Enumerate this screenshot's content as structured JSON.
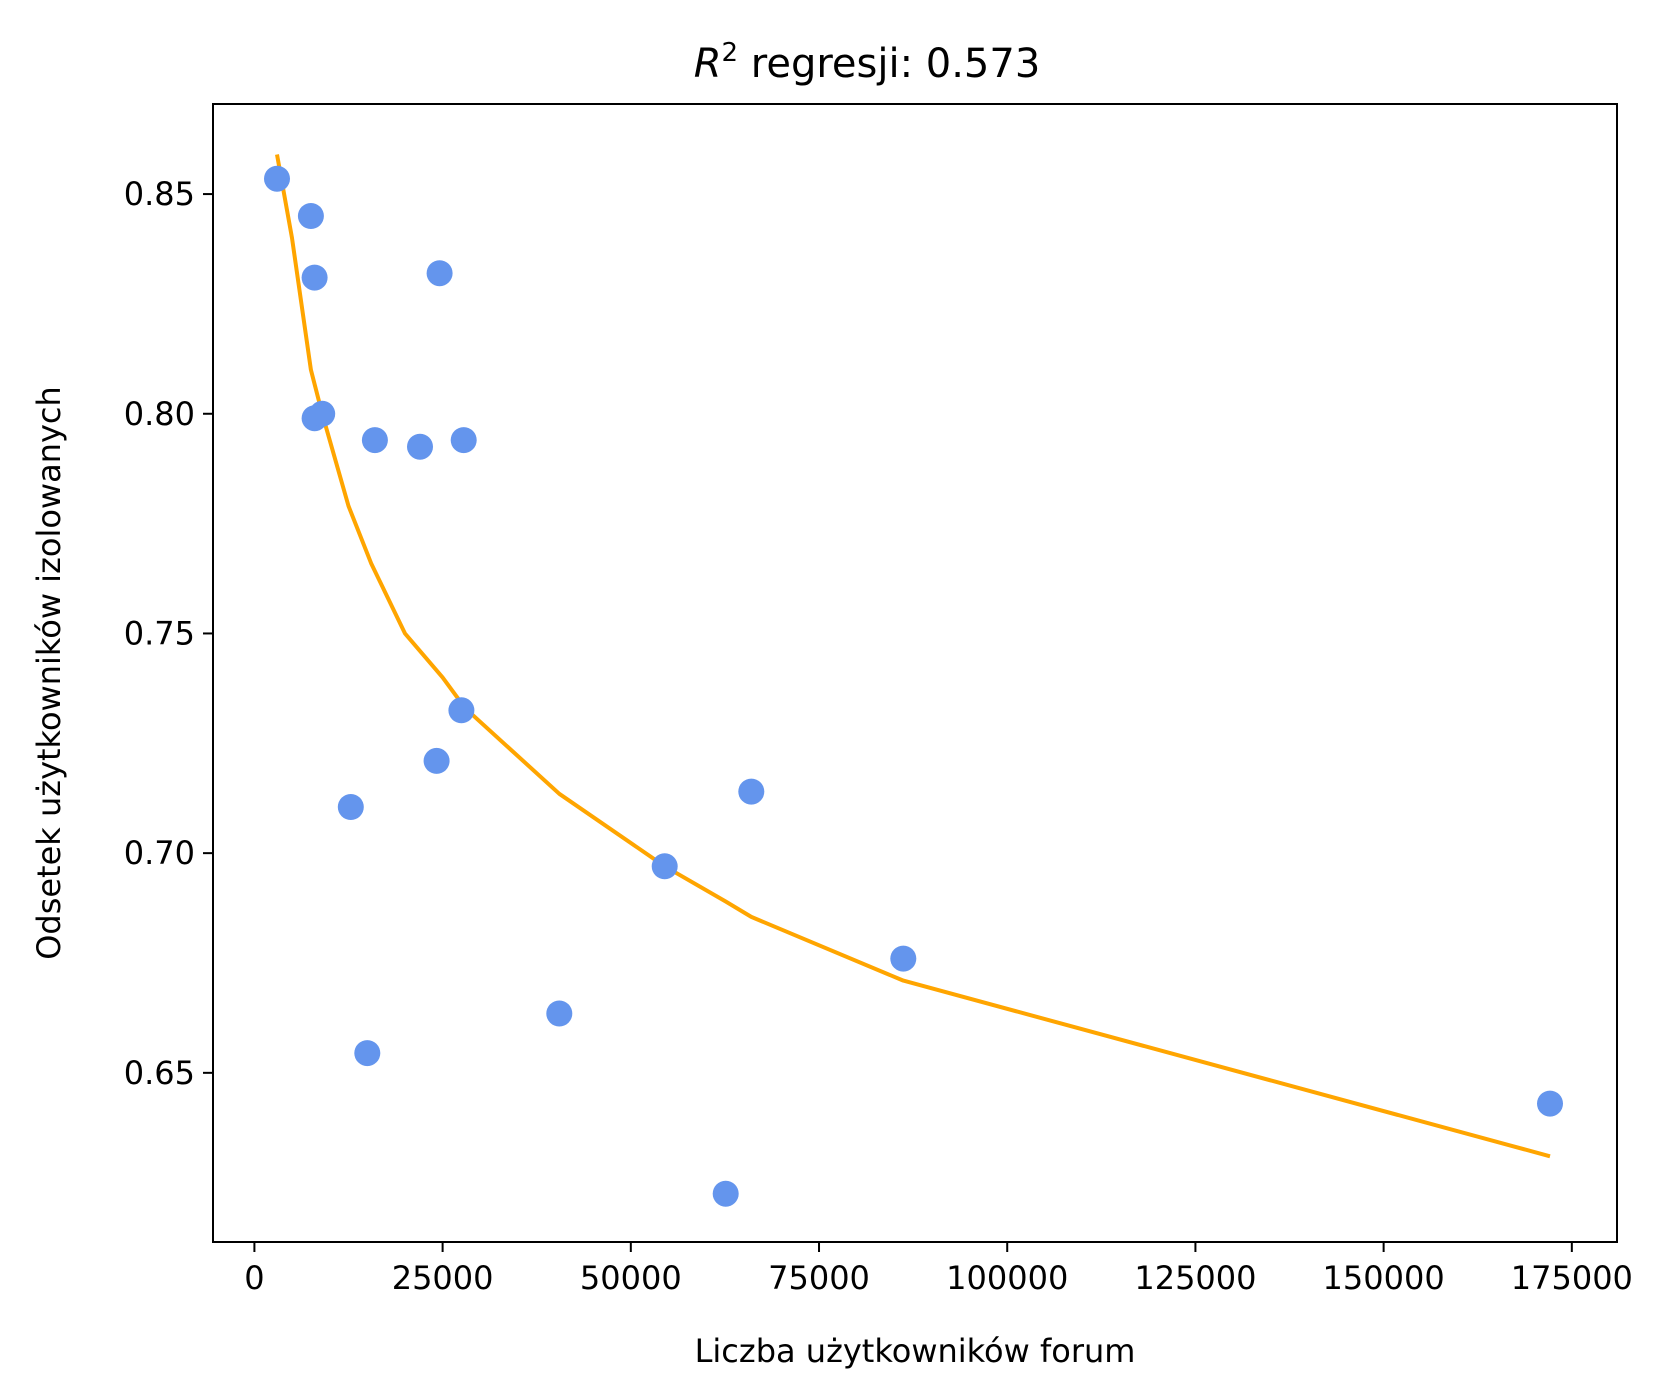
{
  "chart_data": {
    "type": "scatter",
    "title_prefix": "R",
    "title_superscript": "2",
    "title_suffix": " regresji: 0.573",
    "xlabel": "Liczba użytkowników forum",
    "ylabel": "Odsetek użytkowników izolowanych",
    "xlim": [
      -5500,
      181000
    ],
    "ylim": [
      0.6115,
      0.8705
    ],
    "xticks": [
      0,
      25000,
      50000,
      75000,
      100000,
      125000,
      150000,
      175000
    ],
    "xtick_labels": [
      "0",
      "25000",
      "50000",
      "75000",
      "100000",
      "125000",
      "150000",
      "175000"
    ],
    "yticks": [
      0.65,
      0.7,
      0.75,
      0.8,
      0.85
    ],
    "ytick_labels": [
      "0.65",
      "0.70",
      "0.75",
      "0.80",
      "0.85"
    ],
    "grid": false,
    "colors": {
      "points": "#6495ed",
      "fit": "#ffa500"
    },
    "points": [
      {
        "x": 3000,
        "y": 0.8535
      },
      {
        "x": 7500,
        "y": 0.845
      },
      {
        "x": 8000,
        "y": 0.831
      },
      {
        "x": 8000,
        "y": 0.799
      },
      {
        "x": 9000,
        "y": 0.8
      },
      {
        "x": 12800,
        "y": 0.7105
      },
      {
        "x": 15000,
        "y": 0.6545
      },
      {
        "x": 16000,
        "y": 0.794
      },
      {
        "x": 22000,
        "y": 0.7925
      },
      {
        "x": 24200,
        "y": 0.721
      },
      {
        "x": 24600,
        "y": 0.832
      },
      {
        "x": 27500,
        "y": 0.7325
      },
      {
        "x": 27800,
        "y": 0.794
      },
      {
        "x": 40500,
        "y": 0.6635
      },
      {
        "x": 54500,
        "y": 0.697
      },
      {
        "x": 62600,
        "y": 0.6225
      },
      {
        "x": 66000,
        "y": 0.714
      },
      {
        "x": 86200,
        "y": 0.676
      },
      {
        "x": 172100,
        "y": 0.643
      }
    ],
    "fit_line": [
      {
        "x": 3000,
        "y": 0.859
      },
      {
        "x": 5000,
        "y": 0.84
      },
      {
        "x": 7500,
        "y": 0.81
      },
      {
        "x": 9000,
        "y": 0.8
      },
      {
        "x": 12500,
        "y": 0.779
      },
      {
        "x": 15500,
        "y": 0.766
      },
      {
        "x": 20000,
        "y": 0.75
      },
      {
        "x": 25000,
        "y": 0.74
      },
      {
        "x": 28000,
        "y": 0.733
      },
      {
        "x": 40500,
        "y": 0.7135
      },
      {
        "x": 54500,
        "y": 0.697
      },
      {
        "x": 62600,
        "y": 0.689
      },
      {
        "x": 66000,
        "y": 0.6855
      },
      {
        "x": 86200,
        "y": 0.671
      },
      {
        "x": 172100,
        "y": 0.631
      }
    ]
  }
}
